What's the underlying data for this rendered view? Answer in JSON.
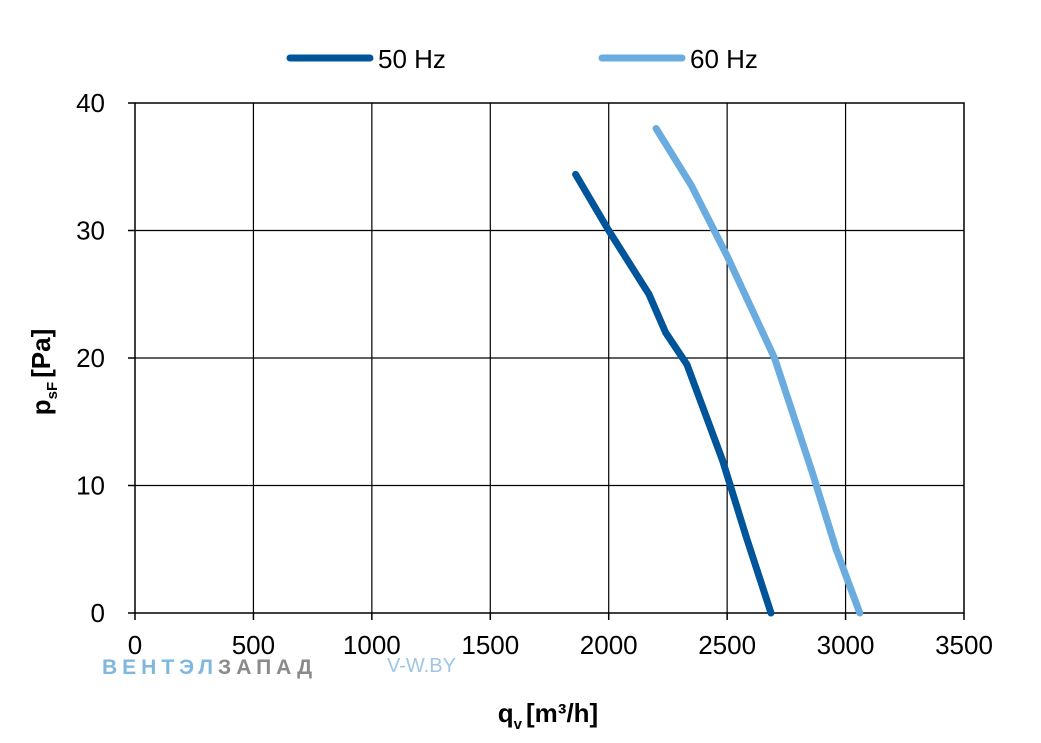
{
  "chart_data": {
    "type": "line",
    "xlabel": "q",
    "xlabel_sub": "v",
    "xlabel_unit": "[m³/h]",
    "ylabel": "p",
    "ylabel_sub": "sF",
    "ylabel_unit": "[Pa]",
    "xlim": [
      0,
      3500
    ],
    "ylim": [
      0,
      40
    ],
    "x_ticks": [
      0,
      500,
      1000,
      1500,
      2000,
      2500,
      3000,
      3500
    ],
    "y_ticks": [
      0,
      10,
      20,
      30,
      40
    ],
    "grid": true,
    "legend_position": "top-center",
    "series": [
      {
        "name": "50 Hz",
        "color": "#00549a",
        "x": [
          1860,
          2000,
          2170,
          2240,
          2330,
          2480,
          2580,
          2685
        ],
        "y": [
          34.4,
          30,
          25,
          22,
          19.5,
          12,
          6,
          0
        ]
      },
      {
        "name": "60 Hz",
        "color": "#6aace0",
        "x": [
          2200,
          2350,
          2500,
          2700,
          2860,
          2960,
          3060
        ],
        "y": [
          38,
          33.5,
          28,
          20,
          11,
          5,
          0
        ]
      }
    ]
  },
  "watermark": {
    "brand_part1": "ВЕНТЭЛ",
    "brand_part2": "ЗАПАД",
    "url": "V-W.BY"
  }
}
